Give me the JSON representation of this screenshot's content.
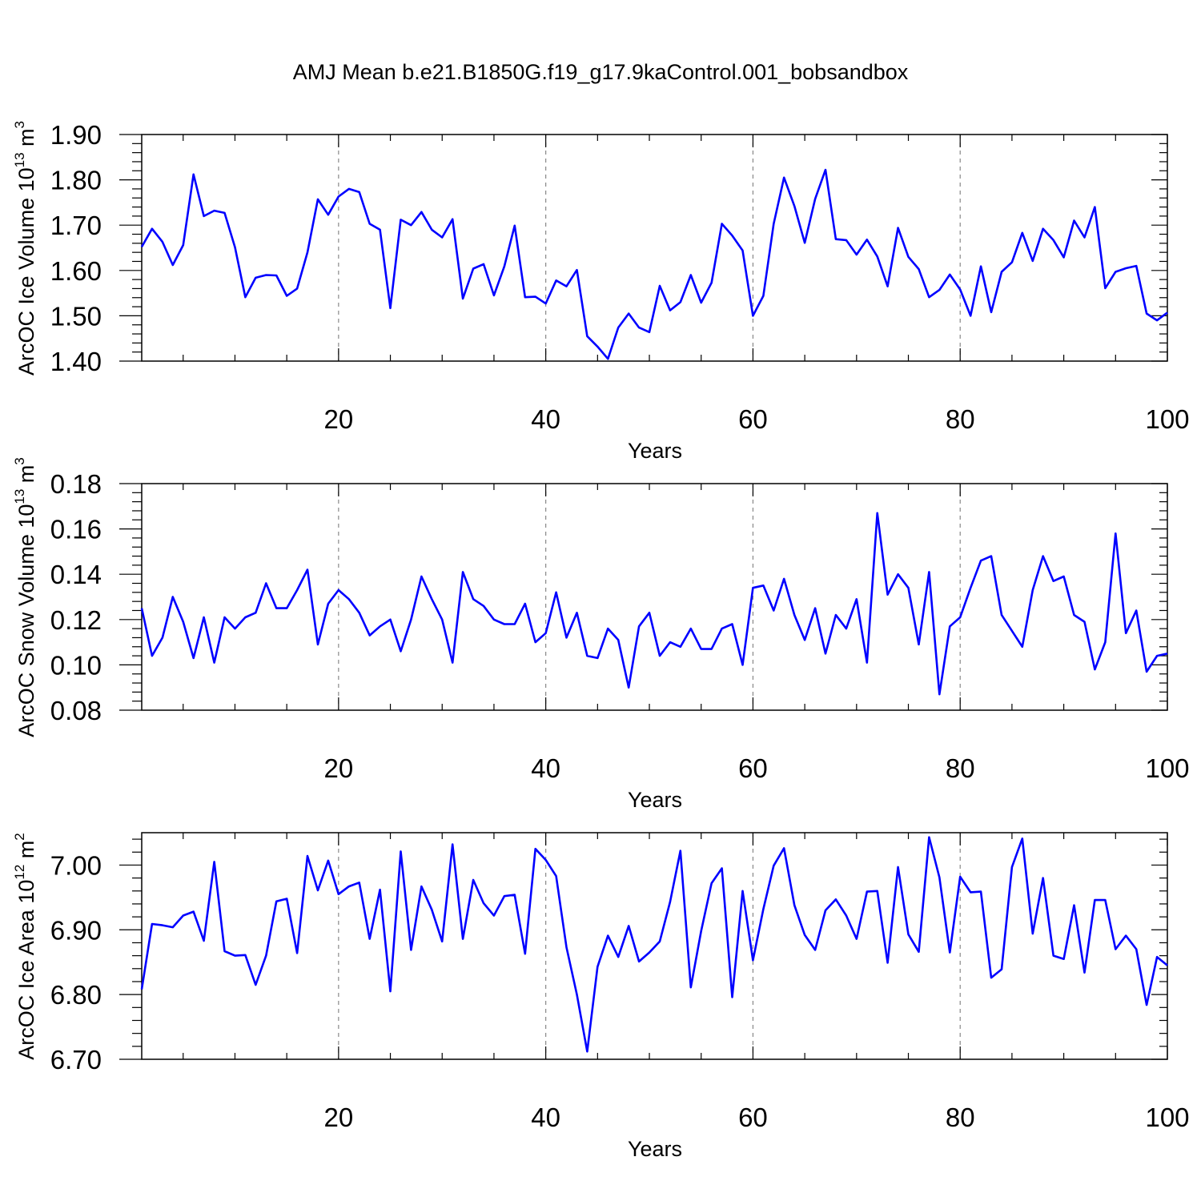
{
  "title": "AMJ Mean b.e21.B1850G.f19_g17.9kaControl.001_bobsandbox",
  "colors": {
    "series": "#0000ff",
    "grid": "#888888",
    "frame": "#000000"
  },
  "chart_data": [
    {
      "type": "line",
      "ylabel_main": "ArcOC Ice Volume 10",
      "ylabel_sup": "13",
      "ylabel_tail": " m",
      "ylabel_unit_sup": "3",
      "xlabel": "Years",
      "xlim": [
        1,
        100
      ],
      "ylim": [
        1.4,
        1.9
      ],
      "x_ticks": [
        20,
        40,
        60,
        80,
        100
      ],
      "y_ticks": [
        "1.40",
        "1.50",
        "1.60",
        "1.70",
        "1.80",
        "1.90"
      ],
      "grid": "vertical dashed at major x ticks",
      "series": [
        {
          "values": [
            1.652,
            1.692,
            1.663,
            1.612,
            1.656,
            1.812,
            1.72,
            1.732,
            1.727,
            1.651,
            1.541,
            1.584,
            1.59,
            1.589,
            1.544,
            1.56,
            1.64,
            1.757,
            1.723,
            1.763,
            1.78,
            1.773,
            1.703,
            1.69,
            1.517,
            1.712,
            1.7,
            1.729,
            1.69,
            1.673,
            1.713,
            1.538,
            1.604,
            1.614,
            1.545,
            1.609,
            1.699,
            1.541,
            1.542,
            1.527,
            1.578,
            1.565,
            1.601,
            1.455,
            1.432,
            1.405,
            1.474,
            1.505,
            1.474,
            1.464,
            1.566,
            1.512,
            1.53,
            1.59,
            1.529,
            1.573,
            1.703,
            1.677,
            1.644,
            1.5,
            1.544,
            1.703,
            1.805,
            1.742,
            1.661,
            1.758,
            1.822,
            1.669,
            1.667,
            1.635,
            1.668,
            1.631,
            1.565,
            1.694,
            1.63,
            1.603,
            1.541,
            1.557,
            1.591,
            1.558,
            1.5,
            1.609,
            1.508,
            1.597,
            1.618,
            1.683,
            1.621,
            1.692,
            1.667,
            1.629,
            1.71,
            1.673,
            1.74,
            1.561,
            1.597,
            1.605,
            1.61,
            1.505,
            1.49,
            1.507
          ]
        }
      ]
    },
    {
      "type": "line",
      "ylabel_main": "ArcOC Snow Volume 10",
      "ylabel_sup": "13",
      "ylabel_tail": " m",
      "ylabel_unit_sup": "3",
      "xlabel": "Years",
      "xlim": [
        1,
        100
      ],
      "ylim": [
        0.08,
        0.18
      ],
      "x_ticks": [
        20,
        40,
        60,
        80,
        100
      ],
      "y_ticks": [
        "0.08",
        "0.10",
        "0.12",
        "0.14",
        "0.16",
        "0.18"
      ],
      "grid": "vertical dashed at major x ticks",
      "series": [
        {
          "values": [
            0.125,
            0.104,
            0.112,
            0.13,
            0.119,
            0.103,
            0.121,
            0.101,
            0.121,
            0.116,
            0.121,
            0.123,
            0.136,
            0.125,
            0.125,
            0.133,
            0.142,
            0.109,
            0.127,
            0.133,
            0.129,
            0.123,
            0.113,
            0.117,
            0.12,
            0.106,
            0.12,
            0.139,
            0.129,
            0.12,
            0.101,
            0.141,
            0.129,
            0.126,
            0.12,
            0.118,
            0.118,
            0.127,
            0.11,
            0.114,
            0.132,
            0.112,
            0.123,
            0.104,
            0.103,
            0.116,
            0.111,
            0.09,
            0.117,
            0.123,
            0.104,
            0.11,
            0.108,
            0.116,
            0.107,
            0.107,
            0.116,
            0.118,
            0.1,
            0.134,
            0.135,
            0.124,
            0.138,
            0.122,
            0.111,
            0.125,
            0.105,
            0.122,
            0.116,
            0.129,
            0.101,
            0.167,
            0.131,
            0.14,
            0.134,
            0.109,
            0.141,
            0.087,
            0.117,
            0.121,
            0.134,
            0.146,
            0.148,
            0.122,
            0.115,
            0.108,
            0.133,
            0.148,
            0.137,
            0.139,
            0.122,
            0.119,
            0.098,
            0.11,
            0.158,
            0.114,
            0.124,
            0.097,
            0.104,
            0.105
          ]
        }
      ]
    },
    {
      "type": "line",
      "ylabel_main": "ArcOC Ice Area 10",
      "ylabel_sup": "12",
      "ylabel_tail": " m",
      "ylabel_unit_sup": "2",
      "xlabel": "Years",
      "xlim": [
        1,
        100
      ],
      "ylim": [
        6.7,
        7.05
      ],
      "x_ticks": [
        20,
        40,
        60,
        80,
        100
      ],
      "y_ticks": [
        "6.70",
        "6.80",
        "6.90",
        "7.00"
      ],
      "grid": "vertical dashed at major x ticks",
      "series": [
        {
          "values": [
            6.808,
            6.909,
            6.907,
            6.904,
            6.922,
            6.928,
            6.883,
            7.005,
            6.867,
            6.86,
            6.861,
            6.815,
            6.86,
            6.944,
            6.948,
            6.864,
            7.014,
            6.961,
            7.007,
            6.955,
            6.967,
            6.973,
            6.886,
            6.962,
            6.805,
            7.021,
            6.869,
            6.967,
            6.931,
            6.882,
            7.032,
            6.886,
            6.977,
            6.941,
            6.922,
            6.952,
            6.954,
            6.863,
            7.025,
            7.008,
            6.983,
            6.873,
            6.8,
            6.712,
            6.843,
            6.891,
            6.858,
            6.906,
            6.851,
            6.865,
            6.882,
            6.943,
            7.022,
            6.811,
            6.898,
            6.972,
            6.995,
            6.796,
            6.96,
            6.853,
            6.932,
            6.999,
            7.026,
            6.938,
            6.892,
            6.869,
            6.93,
            6.947,
            6.922,
            6.886,
            6.959,
            6.96,
            6.849,
            6.997,
            6.893,
            6.866,
            7.043,
            6.981,
            6.865,
            6.982,
            6.958,
            6.959,
            6.826,
            6.839,
            6.997,
            7.041,
            6.894,
            6.98,
            6.86,
            6.855,
            6.938,
            6.834,
            6.946,
            6.946,
            6.87,
            6.891,
            6.87,
            6.784,
            6.858,
            6.845
          ]
        }
      ]
    }
  ]
}
